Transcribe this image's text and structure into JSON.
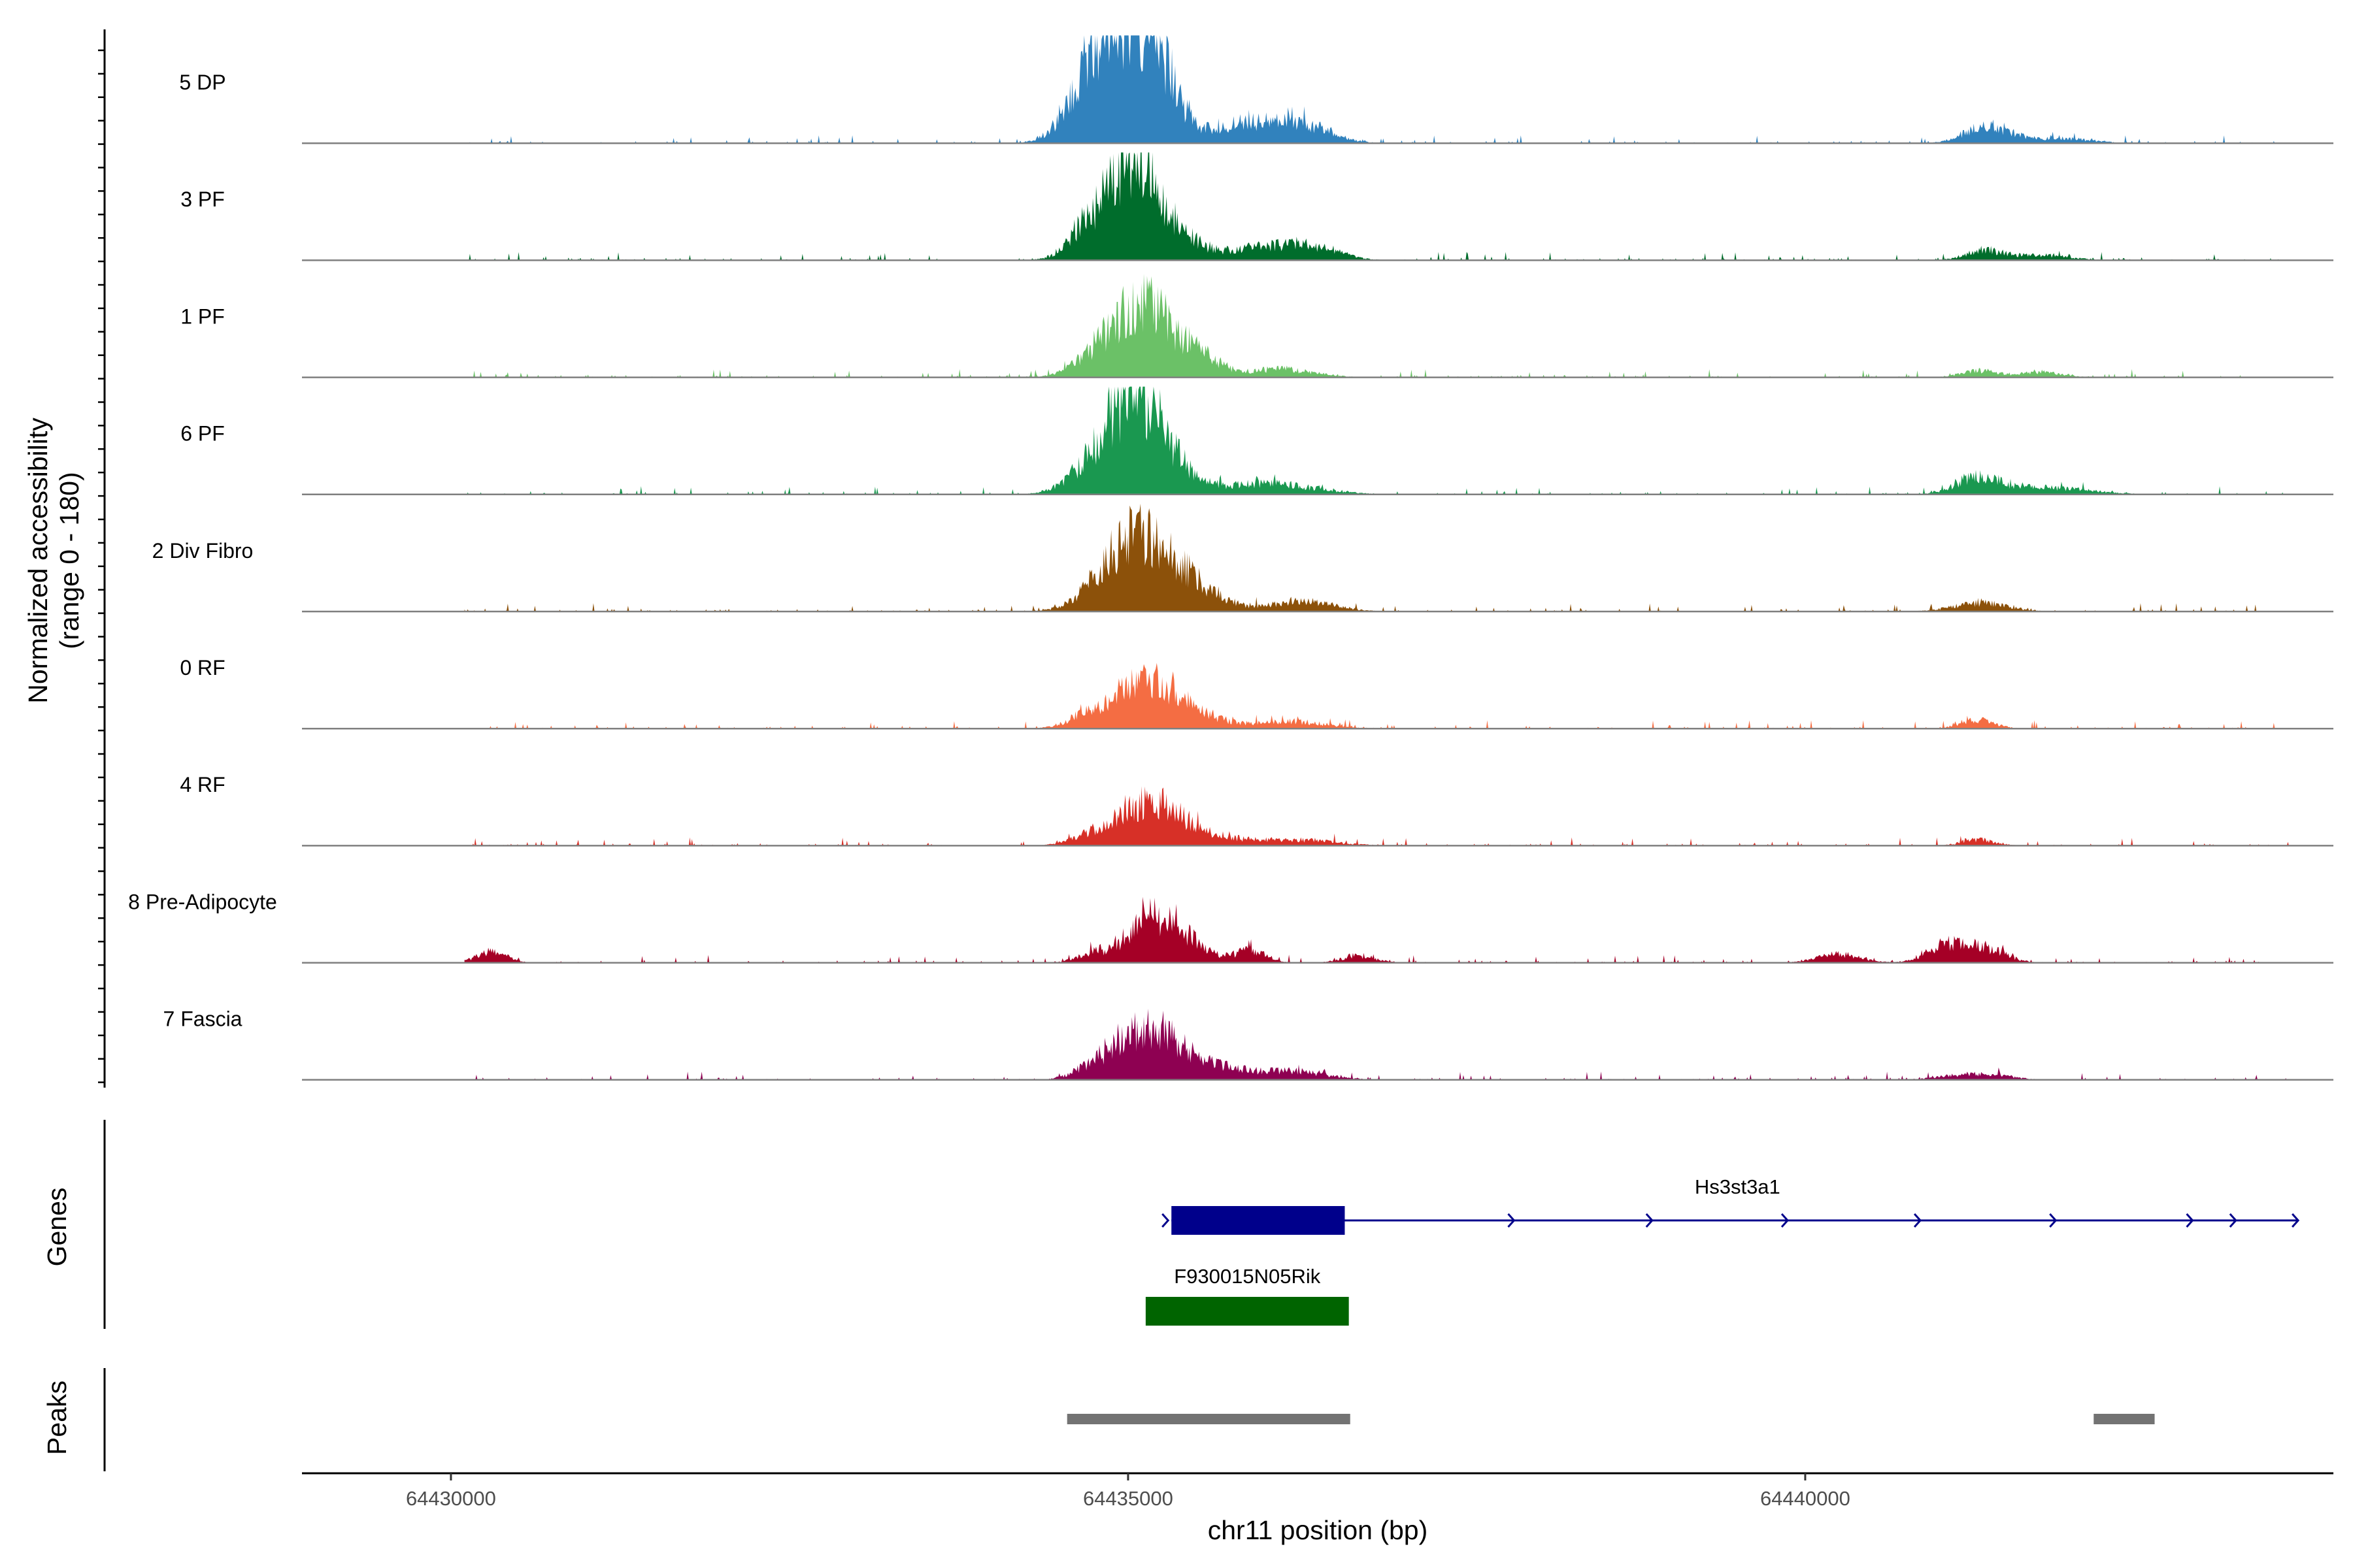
{
  "chart_data": {
    "type": "coverage",
    "chromosome": "chr11",
    "xlabel": "chr11 position (bp)",
    "ylabel": [
      "Normalized accessibility",
      "(range 0 - 180)"
    ],
    "xlim": [
      64428900,
      64443900
    ],
    "ylim": [
      0,
      180
    ],
    "x_ticks": [
      {
        "value": 64430000,
        "label": "64430000"
      },
      {
        "value": 64435000,
        "label": "64435000"
      },
      {
        "value": 64440000,
        "label": "64440000"
      }
    ],
    "region": {
      "start": 64430100,
      "end": 64443600
    },
    "tracks": [
      {
        "label": "5 DP",
        "color": "#3182bd",
        "peaks": [
          [
            64434830,
            120,
            210
          ],
          [
            64435200,
            100,
            170
          ],
          [
            64435030,
            85,
            180
          ],
          [
            64434680,
            28,
            140
          ],
          [
            64435860,
            30,
            260
          ],
          [
            64436280,
            28,
            210
          ],
          [
            64441350,
            30,
            160
          ],
          [
            64441880,
            8,
            220
          ]
        ]
      },
      {
        "label": "3 PF",
        "color": "#006d2c",
        "peaks": [
          [
            64435070,
            110,
            150
          ],
          [
            64434900,
            70,
            200
          ],
          [
            64434680,
            25,
            130
          ],
          [
            64435350,
            40,
            160
          ],
          [
            64436000,
            22,
            300
          ],
          [
            64436400,
            15,
            180
          ],
          [
            64441330,
            16,
            140
          ],
          [
            64441760,
            8,
            200
          ]
        ]
      },
      {
        "label": "1 PF",
        "color": "#6bc167",
        "peaks": [
          [
            64435130,
            115,
            220
          ],
          [
            64434800,
            30,
            180
          ],
          [
            64435550,
            24,
            140
          ],
          [
            64436100,
            14,
            250
          ],
          [
            64441300,
            11,
            140
          ],
          [
            64441760,
            9,
            150
          ]
        ]
      },
      {
        "label": "6 PF",
        "color": "#1a9850",
        "peaks": [
          [
            64435080,
            100,
            180
          ],
          [
            64434920,
            65,
            200
          ],
          [
            64435300,
            35,
            180
          ],
          [
            64434680,
            18,
            180
          ],
          [
            64436000,
            18,
            360
          ],
          [
            64441270,
            28,
            150
          ],
          [
            64441750,
            12,
            320
          ]
        ]
      },
      {
        "label": "2 Div Fibro",
        "color": "#8c510a",
        "peaks": [
          [
            64435100,
            115,
            230
          ],
          [
            64434850,
            25,
            200
          ],
          [
            64435500,
            30,
            220
          ],
          [
            64436300,
            18,
            220
          ],
          [
            64441300,
            14,
            200
          ]
        ]
      },
      {
        "label": "0 RF",
        "color": "#f46d43",
        "peaks": [
          [
            64435150,
            80,
            190
          ],
          [
            64434750,
            28,
            160
          ],
          [
            64435500,
            22,
            200
          ],
          [
            64436200,
            12,
            250
          ],
          [
            64441280,
            15,
            120
          ]
        ]
      },
      {
        "label": "4 RF",
        "color": "#d73027",
        "peaks": [
          [
            64435150,
            70,
            200
          ],
          [
            64434750,
            18,
            160
          ],
          [
            64435500,
            18,
            250
          ],
          [
            64436200,
            10,
            300
          ],
          [
            64441280,
            10,
            120
          ]
        ]
      },
      {
        "label": "8 Pre-Adipocyte",
        "color": "#a50026",
        "peaks": [
          [
            64435150,
            75,
            160
          ],
          [
            64435450,
            35,
            140
          ],
          [
            64434750,
            16,
            120
          ],
          [
            64435900,
            20,
            120
          ],
          [
            64436700,
            12,
            120
          ],
          [
            64430300,
            18,
            110
          ],
          [
            64441050,
            30,
            140
          ],
          [
            64441350,
            22,
            140
          ],
          [
            64440250,
            14,
            160
          ]
        ]
      },
      {
        "label": "7 Fascia",
        "color": "#8e0152",
        "peaks": [
          [
            64435150,
            80,
            200
          ],
          [
            64434780,
            25,
            150
          ],
          [
            64435550,
            25,
            250
          ],
          [
            64436200,
            14,
            250
          ],
          [
            64441250,
            10,
            220
          ]
        ]
      }
    ],
    "genes_panel": {
      "title": "Genes",
      "genes": [
        {
          "name": "Hs3st3a1",
          "start": 64435320,
          "end": 64443640,
          "exon_end": 64436600,
          "strand": "+",
          "color": "#00008b"
        },
        {
          "name": "F930015N05Rik",
          "start": 64435130,
          "end": 64436630,
          "color": "#006400"
        }
      ]
    },
    "peaks_panel": {
      "title": "Peaks",
      "color": "#737373",
      "peaks": [
        {
          "start": 64434550,
          "end": 64436640
        },
        {
          "start": 64442130,
          "end": 64442580
        }
      ]
    }
  }
}
